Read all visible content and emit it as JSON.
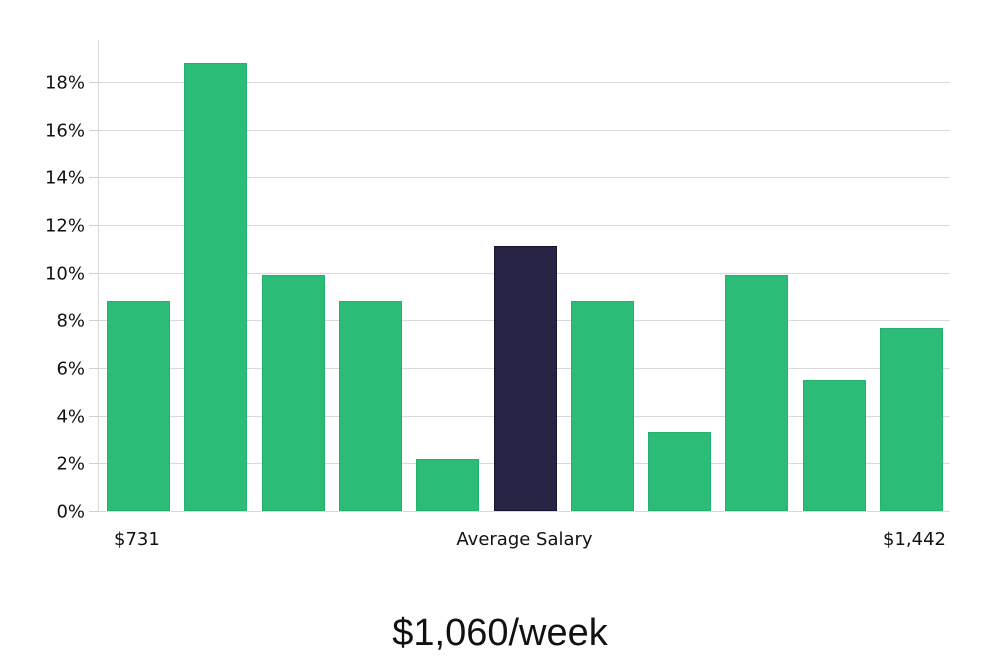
{
  "chart_data": {
    "type": "bar",
    "title": "",
    "xlabel": "Average Salary",
    "ylabel": "",
    "ylim": [
      0,
      19.7
    ],
    "yticks": [
      0,
      2,
      4,
      6,
      8,
      10,
      12,
      14,
      16,
      18
    ],
    "ytick_labels": [
      "0%",
      "2%",
      "4%",
      "6%",
      "8%",
      "10%",
      "12%",
      "14%",
      "16%",
      "18%"
    ],
    "grid": true,
    "categories": [
      "bin1",
      "bin2",
      "bin3",
      "bin4",
      "bin5",
      "bin6",
      "bin7",
      "bin8",
      "bin9",
      "bin10",
      "bin11"
    ],
    "values": [
      8.8,
      18.8,
      9.9,
      8.8,
      2.2,
      11.1,
      8.8,
      3.3,
      9.9,
      5.5,
      7.7
    ],
    "highlight_index": 5,
    "x_labels": {
      "left": "$731",
      "center": "Average Salary",
      "right": "$1,442"
    },
    "colors": {
      "bar": "#2bbd77",
      "bar_border": "#26b06c",
      "highlight": "#282446",
      "highlight_border": "#171430",
      "grid": "#d9d9d9"
    }
  },
  "summary": {
    "average_label": "$1,060/week"
  }
}
